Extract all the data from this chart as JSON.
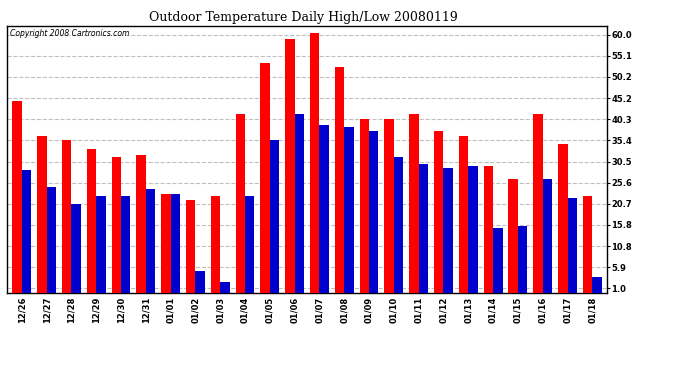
{
  "title": "Outdoor Temperature Daily High/Low 20080119",
  "copyright": "Copyright 2008 Cartronics.com",
  "dates": [
    "12/26",
    "12/27",
    "12/28",
    "12/29",
    "12/30",
    "12/31",
    "01/01",
    "01/02",
    "01/03",
    "01/04",
    "01/05",
    "01/06",
    "01/07",
    "01/08",
    "01/09",
    "01/10",
    "01/11",
    "01/12",
    "01/13",
    "01/14",
    "01/15",
    "01/16",
    "01/17",
    "01/18"
  ],
  "highs": [
    44.5,
    36.5,
    35.5,
    33.5,
    31.5,
    32.0,
    23.0,
    21.5,
    22.5,
    41.5,
    53.5,
    59.0,
    60.5,
    52.5,
    40.5,
    40.5,
    41.5,
    37.5,
    36.5,
    29.5,
    26.5,
    41.5,
    34.5,
    22.5
  ],
  "lows": [
    28.5,
    24.5,
    20.5,
    22.5,
    22.5,
    24.0,
    23.0,
    5.0,
    2.5,
    22.5,
    35.5,
    41.5,
    39.0,
    38.5,
    37.5,
    31.5,
    30.0,
    29.0,
    29.5,
    15.0,
    15.5,
    26.5,
    22.0,
    3.5
  ],
  "high_color": "#ff0000",
  "low_color": "#0000cc",
  "bg_color": "#ffffff",
  "plot_bg_color": "#ffffff",
  "grid_color": "#c0c0c0",
  "yticks": [
    1.0,
    5.9,
    10.8,
    15.8,
    20.7,
    25.6,
    30.5,
    35.4,
    40.3,
    45.2,
    50.2,
    55.1,
    60.0
  ],
  "ylim": [
    0,
    62
  ],
  "bar_width": 0.38,
  "title_fontsize": 9,
  "tick_fontsize": 6,
  "copyright_fontsize": 5.5
}
